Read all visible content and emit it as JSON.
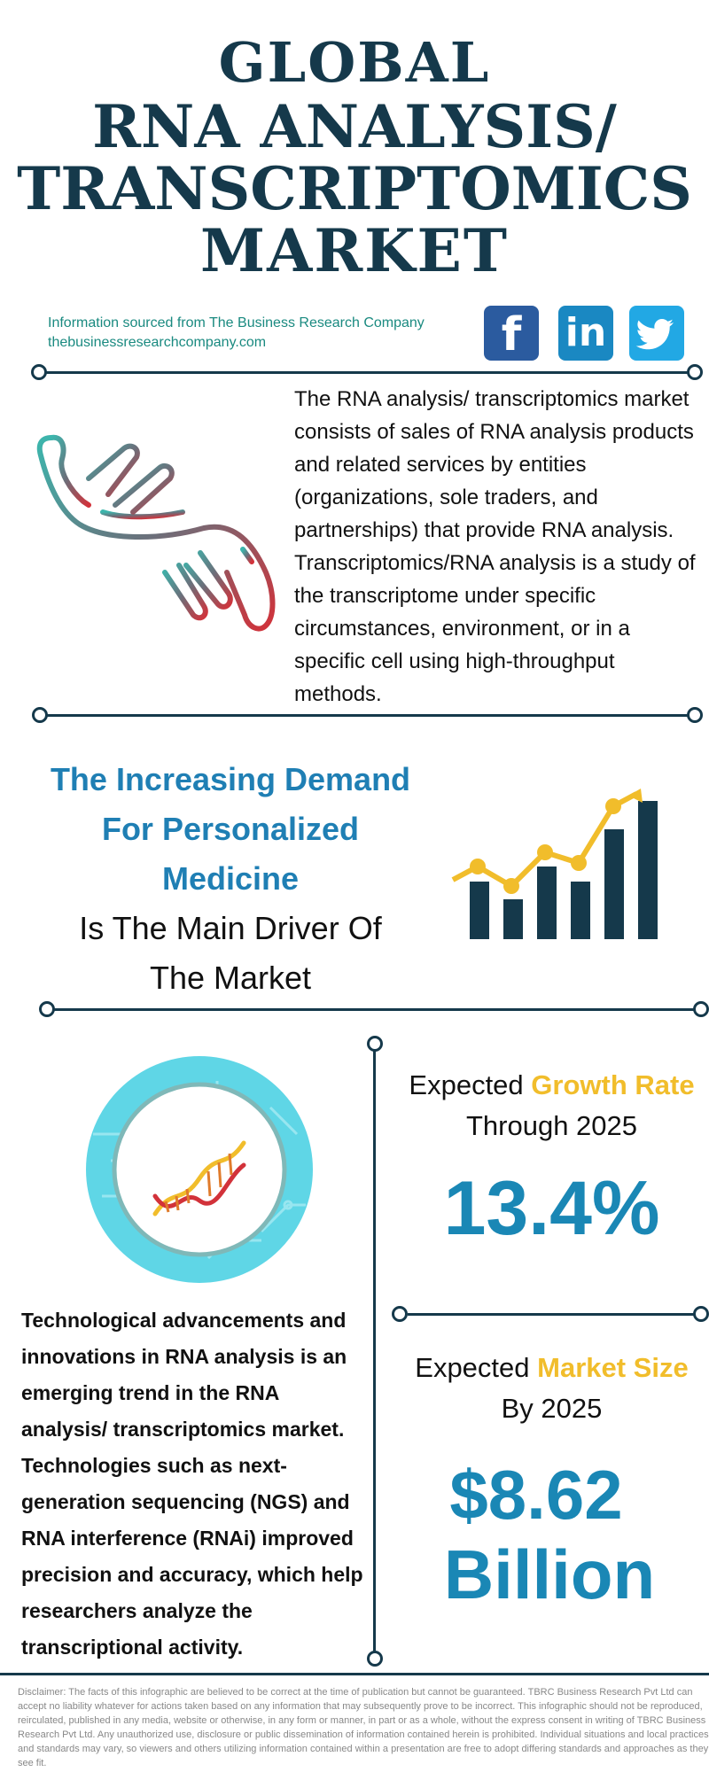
{
  "title": {
    "line1": "GLOBAL",
    "line2": "RNA ANALYSIS/",
    "line3": "TRANSCRIPTOMICS",
    "line4": "MARKET"
  },
  "source": {
    "line1": "Information sourced from The Business Research Company",
    "line2": "thebusinessresearchcompany.com"
  },
  "social": {
    "facebook": "f",
    "linkedin": "in",
    "twitter_icon": "twitter-bird-icon"
  },
  "intro": {
    "text": "The RNA analysis/ transcriptomics market consists of sales of RNA analysis products and related services by entities (organizations, sole traders, and partnerships) that provide RNA analysis. Transcriptomics/RNA analysis is a study of the transcriptome under specific circumstances, environment, or in a specific cell using high-throughput methods."
  },
  "driver": {
    "line1": "The Increasing Demand",
    "line2": "For Personalized",
    "line3": "Medicine",
    "line4": "Is The Main Driver Of",
    "line5": "The Market"
  },
  "growth": {
    "prefix": "Expected ",
    "accent": "Growth Rate",
    "line2": "Through 2025",
    "value": "13.4%"
  },
  "market_size": {
    "prefix": "Expected ",
    "accent": "Market Size",
    "line2": "By 2025",
    "value_line1": "$8.62",
    "value_line2": "Billion"
  },
  "trend": {
    "text": "Technological advancements and innovations in RNA analysis is an emerging trend in the RNA analysis/ transcriptomics market. Technologies such as next-generation sequencing (NGS) and RNA interference (RNAi) improved precision and accuracy, which help researchers analyze the transcriptional activity."
  },
  "disclaimer": "Disclaimer: The facts of this infographic are believed to be correct at the time of publication but cannot be guaranteed. TBRC Business Research Pvt Ltd can accept no liability whatever for actions taken based on any information that may subsequently prove to be incorrect. This infographic should not be reproduced, reirculated, published in any media, website or otherwise, in any form or manner, in part or as a whole, without the express consent in writing of TBRC Business Research Pvt Ltd. Any unauthorized use, disclosure or public dissemination of information contained herein is prohibited. Individual situations and local practices and standards may vary, so viewers and others utilizing information contained within a presentation are free to adopt differing standards and approaches as they see fit.",
  "colors": {
    "navy": "#15394b",
    "blue": "#1f7fb4",
    "gold": "#f1bd2b",
    "teal": "#1a8a80"
  }
}
